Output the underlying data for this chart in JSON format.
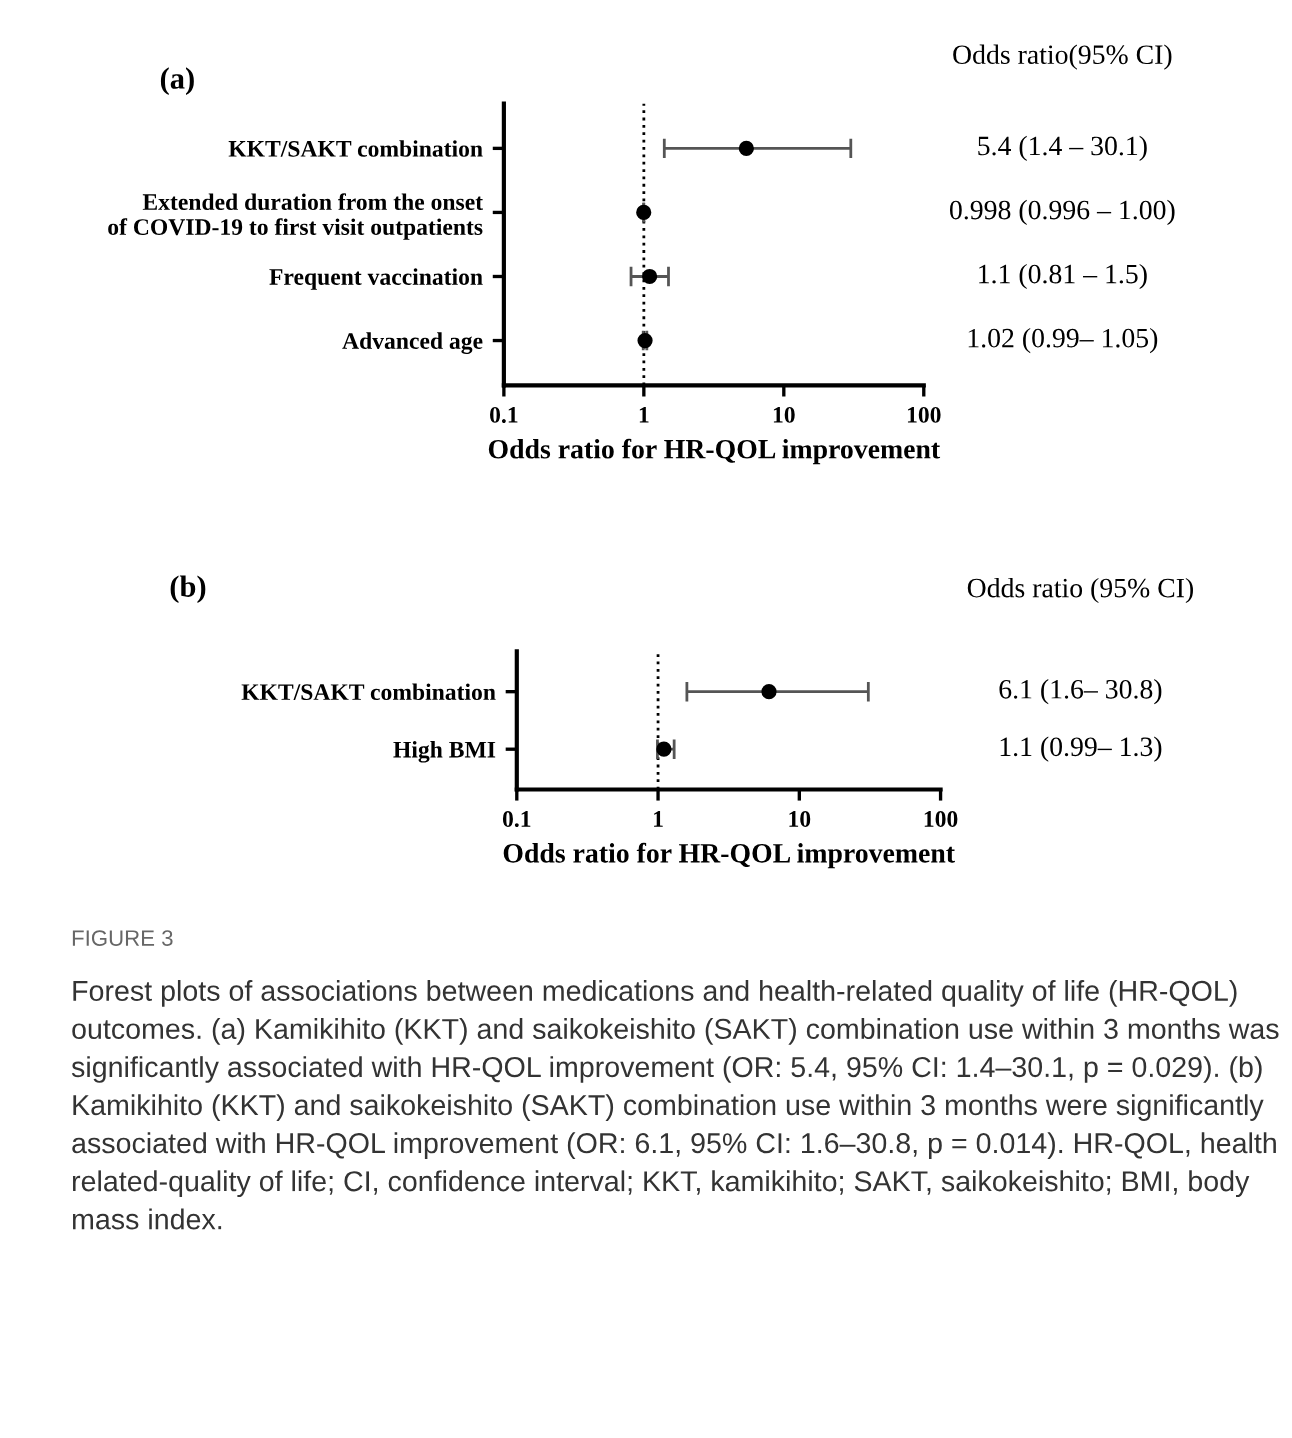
{
  "chart_data": [
    {
      "type": "scatter",
      "orientation": "horizontal",
      "title": "(a)",
      "xlabel": "Odds ratio for HR-QOL improvement",
      "categories": [
        "KKT/SAKT combination",
        "Extended duration from the onset\nof COVID-19 to first visit outpatients",
        "Frequent vaccination",
        "Advanced age"
      ],
      "values": [
        5.4,
        0.998,
        1.1,
        1.02
      ],
      "color": "#000000",
      "errors": [
        [
          1.4,
          30.1
        ],
        [
          0.996,
          1.0
        ],
        [
          0.81,
          1.5
        ],
        [
          0.99,
          1.05
        ]
      ],
      "grid": false,
      "legend": false,
      "log": "x",
      "xlim": [
        0.1,
        100
      ],
      "xticks": [
        0.1,
        1,
        10,
        100
      ],
      "marker": "circle",
      "ref_lines": [
        {
          "axis": "x",
          "value": 1,
          "line_style": "dotted",
          "color": "#000000"
        }
      ],
      "annotations": [
        "Odds ratio(95% CI)",
        "5.4 (1.4 – 30.1)",
        "0.998 (0.996 – 1.00)",
        "1.1 (0.81 – 1.5)",
        "1.02 (0.99– 1.05)"
      ]
    },
    {
      "type": "scatter",
      "orientation": "horizontal",
      "title": "(b)",
      "xlabel": "Odds ratio for HR-QOL improvement",
      "categories": [
        "KKT/SAKT combination",
        "High BMI"
      ],
      "values": [
        6.1,
        1.1
      ],
      "color": "#000000",
      "errors": [
        [
          1.6,
          30.8
        ],
        [
          0.99,
          1.3
        ]
      ],
      "grid": false,
      "legend": false,
      "log": "x",
      "xlim": [
        0.1,
        100
      ],
      "xticks": [
        0.1,
        1,
        10,
        100
      ],
      "marker": "circle",
      "ref_lines": [
        {
          "axis": "x",
          "value": 1,
          "line_style": "dotted",
          "color": "#000000"
        }
      ],
      "annotations": [
        "Odds ratio (95% CI)",
        "6.1 (1.6– 30.8)",
        "1.1 (0.99– 1.3)",
        "FIGURE 3",
        "Forest plots of associations between medications and health-related quality of life (HR-QOL) outcomes. (a) Kamikihito (KKT) and saikokeishito (SAKT) combination use within 3 months was significantly associated with HR-QOL improvement (OR: 5.4, 95% CI: 1.4–30.1, p = 0.029). (b) Kamikihito (KKT) and saikokeishito (SAKT) combination use within 3 months were significantly associated with HR-QOL improvement (OR: 6.1, 95% CI: 1.6–30.8, p = 0.014). HR-QOL, health related-quality of life; CI, confidence interval; KKT, kamikihito; SAKT, saikokeishito; BMI, body mass index."
      ]
    }
  ]
}
